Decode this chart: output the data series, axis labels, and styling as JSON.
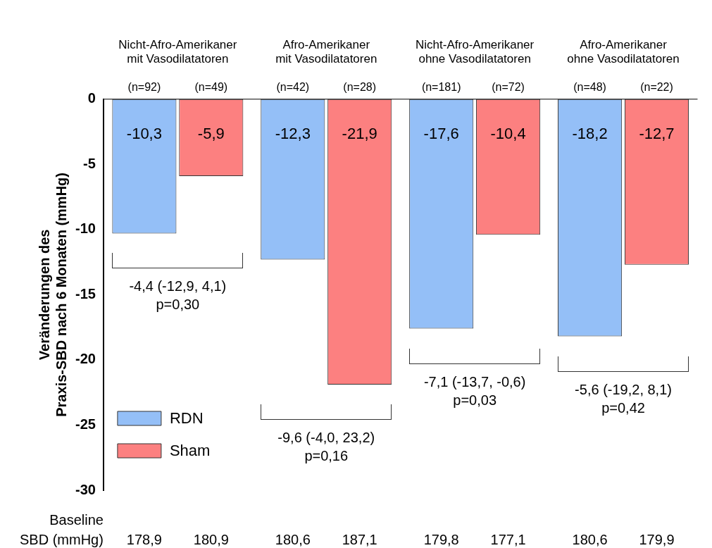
{
  "chart_data": {
    "type": "bar",
    "ylabel": "Veränderungen des\nPraxis-SBD nach 6 Monaten (mmHg)",
    "categories": [
      "Nicht-Afro-Amerikaner\nmit Vasodilatatoren",
      "Afro-Amerikaner\nmit Vasodilatatoren",
      "Nicht-Afro-Amerikaner\nohne Vasodilatatoren",
      "Afro-Amerikaner\nohne Vasodilatatoren"
    ],
    "series": [
      {
        "name": "RDN",
        "color": "#94bff7",
        "values": [
          -10.3,
          -12.3,
          -17.6,
          -18.2
        ],
        "value_labels": [
          "-10,3",
          "-12,3",
          "-17,6",
          "-18,2"
        ]
      },
      {
        "name": "Sham",
        "color": "#fc8080",
        "values": [
          -5.9,
          -21.9,
          -10.4,
          -12.7
        ],
        "value_labels": [
          "-5,9",
          "-21,9",
          "-10,4",
          "-12,7"
        ]
      }
    ],
    "ylim": [
      -30,
      0
    ],
    "yticks": [
      0,
      -5,
      -10,
      -15,
      -20,
      -25,
      -30
    ],
    "grid": false,
    "legend": "bottom left",
    "annotations": [
      "(n=92)",
      "(n=49)",
      "(n=42)",
      "(n=28)",
      "(n=181)",
      "(n=72)",
      "(n=48)",
      "(n=22)",
      "-4,4 (-12,9, 4,1)\np=0,30",
      "-9,6 (-4,0, 23,2)\np=0,16",
      "-7,1 (-13,7, -0,6)\np=0,03",
      "-5,6 (-19,2, 8,1)\np=0,42",
      "Baseline\nSBD (mmHg)",
      "178,9",
      "180,9",
      "180,6",
      "187,1",
      "179,8",
      "177,1",
      "180,6",
      "179,9"
    ]
  }
}
